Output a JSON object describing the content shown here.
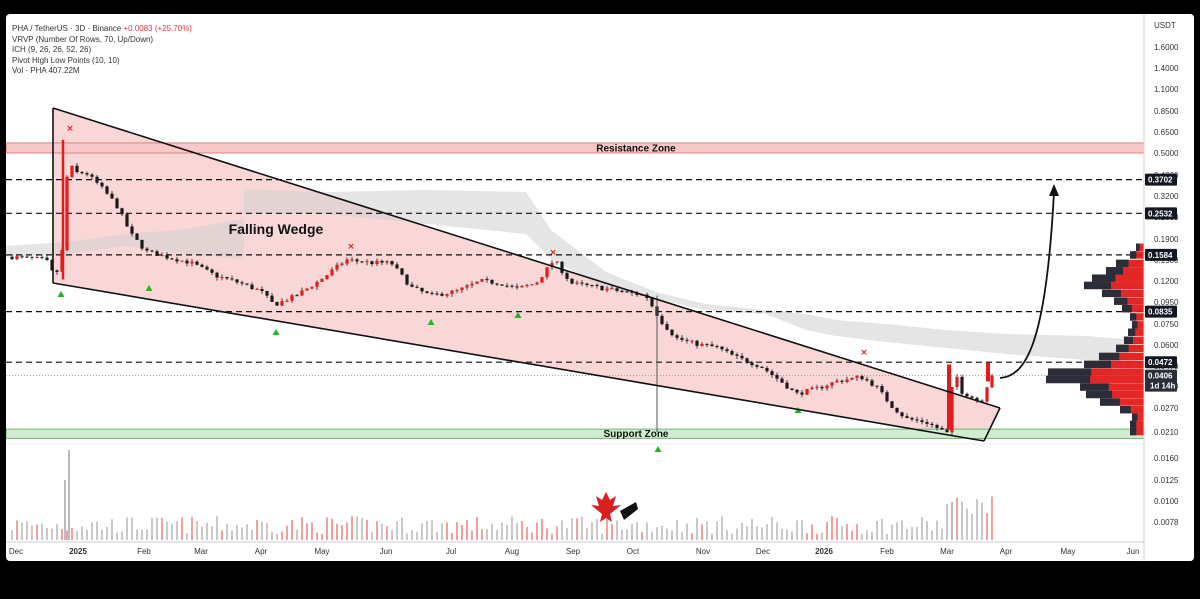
{
  "header": {
    "symbol_line": "PHA / TetherUS · 3D · Binance",
    "change": "+0.0083 (+25.70%)",
    "indicators": [
      "VRVP (Number Of Rows, 70, Up/Down)",
      "ICH (9, 26, 26, 52, 26)",
      "Pivot High Low Points (10, 10)",
      "Vol · PHA  407.22M"
    ]
  },
  "chart_data": {
    "type": "candlestick",
    "y_scale": "log",
    "currency": "USDT",
    "y_ticks": [
      "1.6000",
      "1.4000",
      "1.1000",
      "0.8500",
      "0.6500",
      "0.5000",
      "0.4000",
      "0.3200",
      "0.2500",
      "0.1900",
      "0.1500",
      "0.1200",
      "0.0950",
      "0.0750",
      "0.0600",
      "0.0470",
      "0.0380",
      "0.0270",
      "0.0210"
    ],
    "vol_ticks": [
      "0.0160",
      "0.0125",
      "0.0100",
      "0.0078"
    ],
    "x_ticks": [
      "Dec",
      "2025",
      "Feb",
      "Mar",
      "Apr",
      "May",
      "Jun",
      "Jul",
      "Aug",
      "Sep",
      "Oct",
      "Nov",
      "Dec",
      "2026",
      "Feb",
      "Mar",
      "Apr",
      "May",
      "Jun"
    ],
    "levels": [
      0.3702,
      0.2532,
      0.1584,
      0.0835,
      0.0472
    ],
    "level_labels": [
      "0.3702",
      "0.2532",
      "0.1584",
      "0.0835",
      "0.0472"
    ],
    "current_price": "0.0406",
    "countdown": "1d 14h",
    "zones": [
      {
        "name": "Resistance Zone",
        "low": 0.5,
        "high": 0.56,
        "color": "#f8c8c8"
      },
      {
        "name": "Support Zone",
        "low": 0.02,
        "high": 0.0222,
        "color": "#cfeecf"
      }
    ],
    "pattern": "Falling Wedge",
    "colors": {
      "up": "#26a69a",
      "down": "#ef5350",
      "candle": "#1a1a1a",
      "wedge_fill": "#f9d0d0",
      "label_bg": "#131722"
    }
  }
}
